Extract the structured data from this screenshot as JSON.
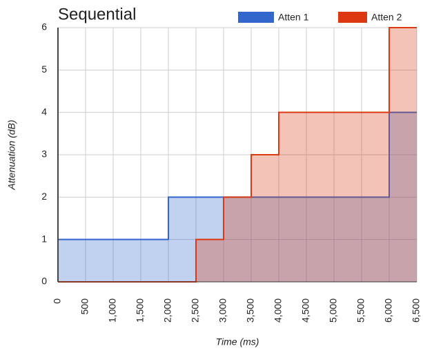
{
  "chart_data": {
    "type": "steppedArea",
    "title": "Sequential",
    "x_label": "Time (ms)",
    "y_label": "Attenuation (dB)",
    "x": [
      0,
      2000,
      2500,
      3000,
      3500,
      4000,
      6000,
      6500
    ],
    "series": [
      {
        "name": "Atten 1",
        "color": "#3366cc",
        "values": [
          1,
          2,
          2,
          2,
          2,
          2,
          4,
          4
        ]
      },
      {
        "name": "Atten 2",
        "color": "#dc3912",
        "values": [
          0,
          0,
          1,
          2,
          3,
          4,
          6,
          6
        ]
      }
    ],
    "xlim": [
      0,
      6500
    ],
    "xticks": [
      0,
      500,
      {
        "value": 1000,
        "label": "1,000"
      },
      {
        "value": 1500,
        "label": "1,500"
      },
      {
        "value": 2000,
        "label": "2,000"
      },
      {
        "value": 2500,
        "label": "2,500"
      },
      {
        "value": 3000,
        "label": "3,000"
      },
      {
        "value": 3500,
        "label": "3,500"
      },
      {
        "value": 4000,
        "label": "4,000"
      },
      {
        "value": 4500,
        "label": "4,500"
      },
      {
        "value": 5000,
        "label": "5,000"
      },
      {
        "value": 5500,
        "label": "5,500"
      },
      {
        "value": 6000,
        "label": "6,000"
      },
      {
        "value": 6500,
        "label": "6,500"
      }
    ],
    "ylim": [
      0,
      6
    ],
    "yticks": [
      0,
      1,
      2,
      3,
      4,
      5,
      6
    ],
    "grid": true,
    "legend": "top-right"
  }
}
